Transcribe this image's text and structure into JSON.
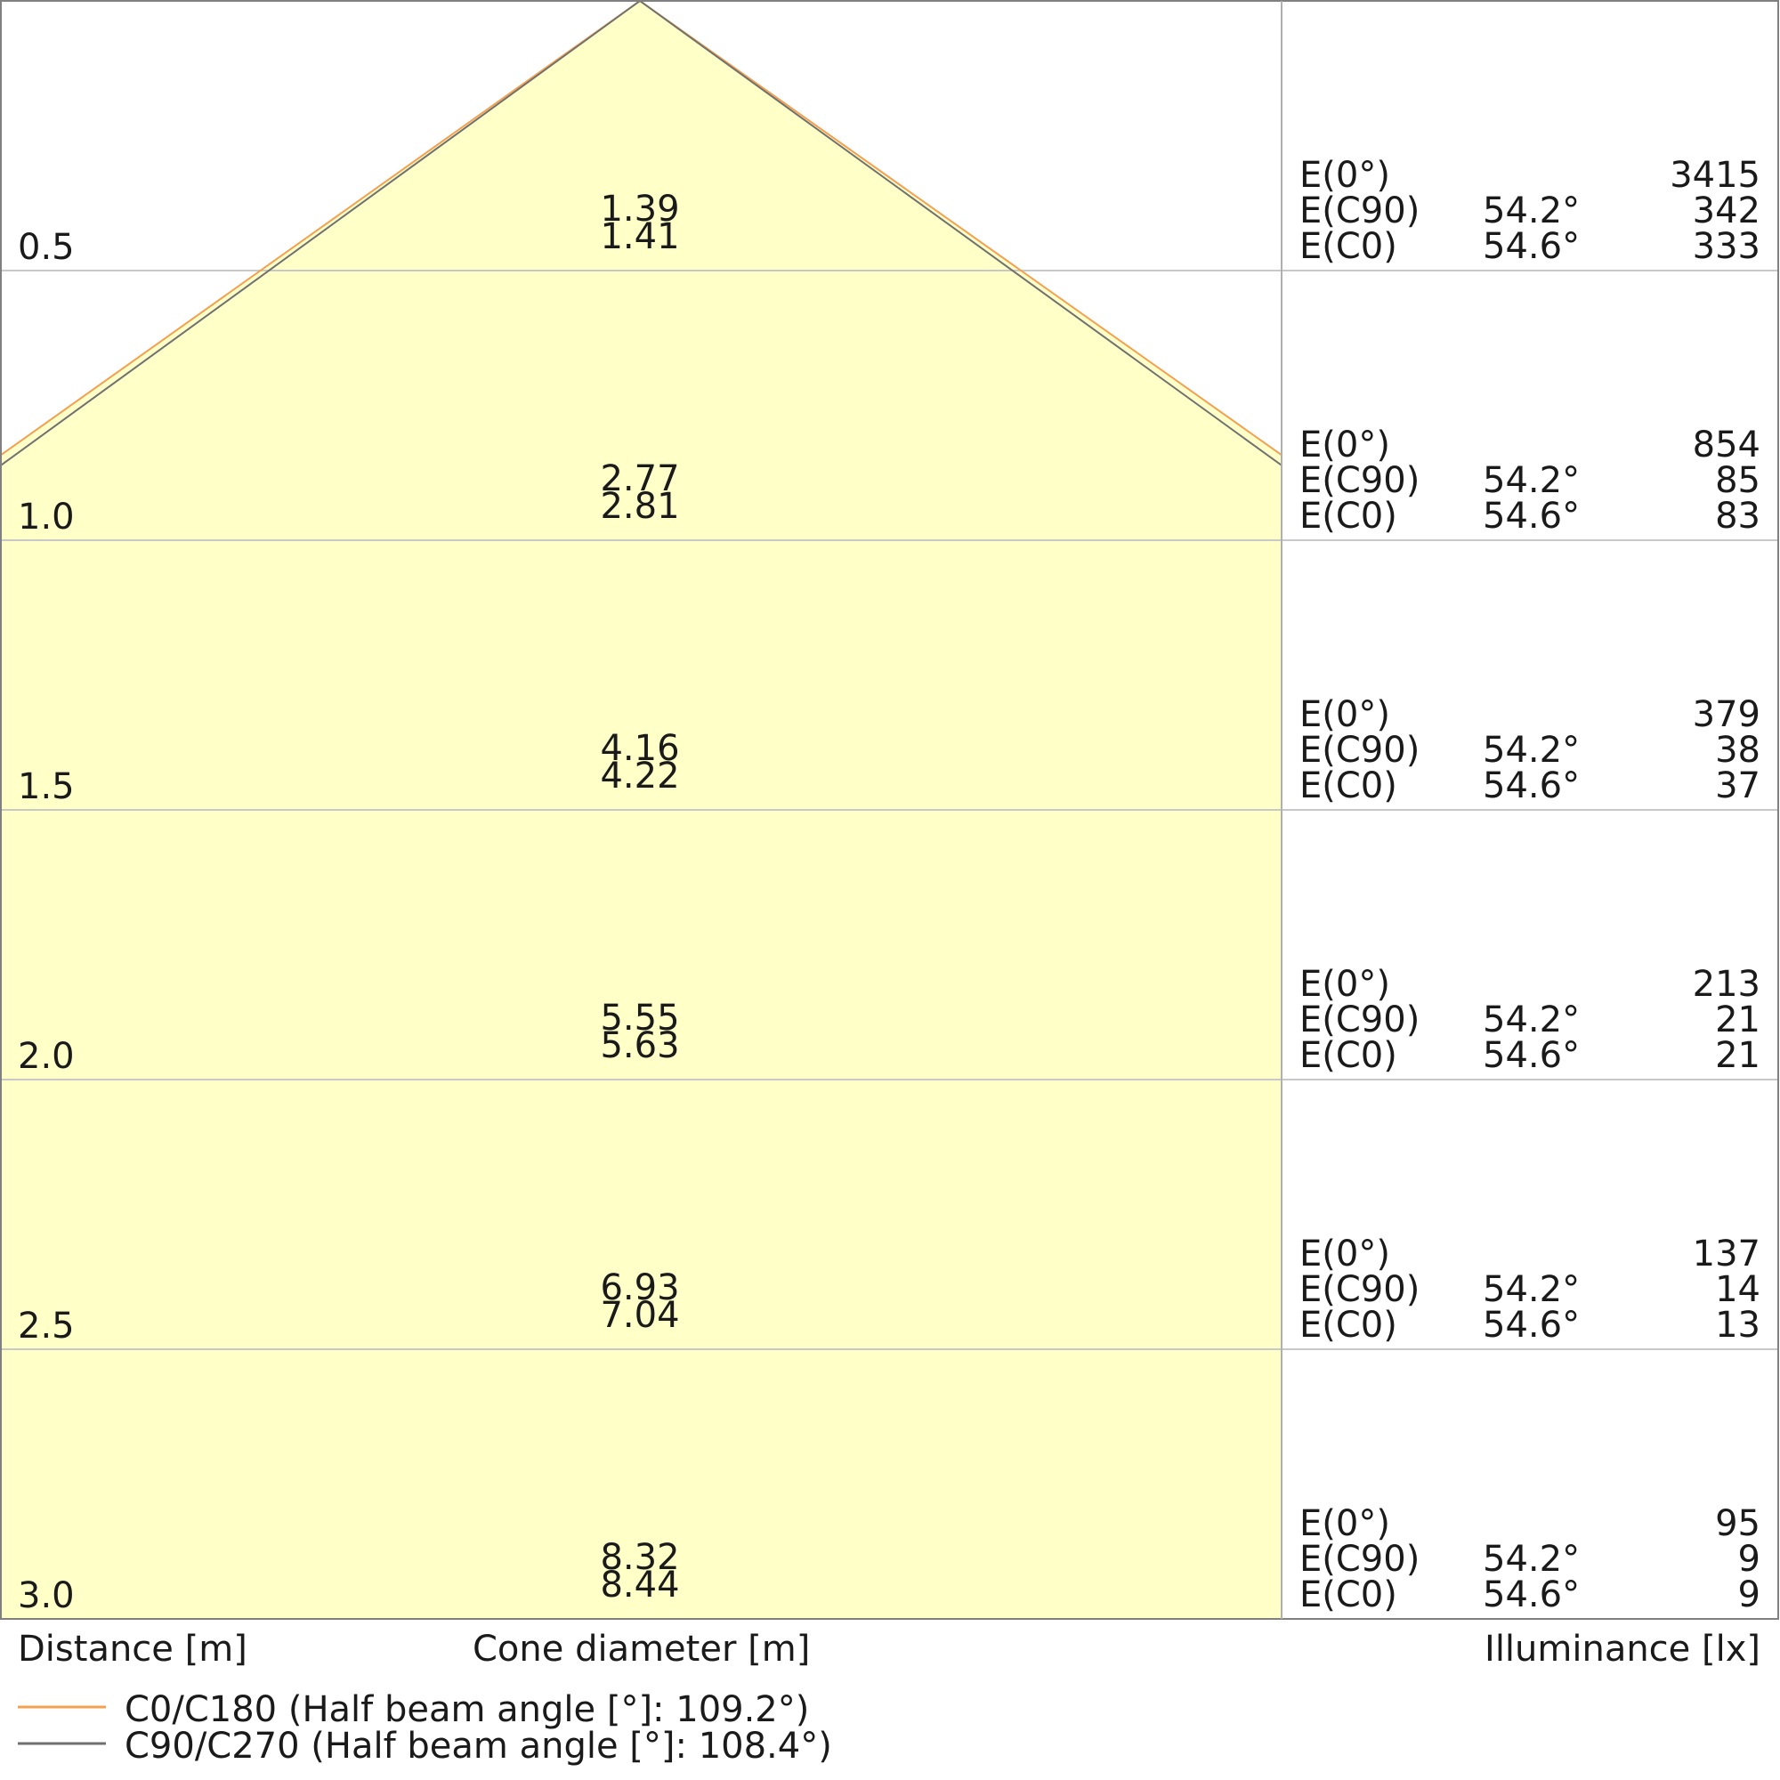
{
  "chart_data": {
    "type": "cone-diagram",
    "xlabel_left": "Distance [m]",
    "xlabel_center": "Cone diameter [m]",
    "xlabel_right": "Illuminance [lx]",
    "distance_range": [
      0,
      3.0
    ],
    "grid": true,
    "legend_placement": "bottom-left",
    "colors": {
      "fill": "#ffffc8",
      "c0": "#f5a050",
      "c90": "#707070",
      "grid": "#c8c8c8",
      "border": "#808080"
    },
    "series": [
      {
        "name": "C0/C180 (Half beam angle [°]: 109.2°)",
        "half_beam_angle": 109.2,
        "color": "#f5a050"
      },
      {
        "name": "C90/C270 (Half beam angle [°]: 108.4°)",
        "half_beam_angle": 108.4,
        "color": "#707070"
      }
    ],
    "rows": [
      {
        "distance": "0.5",
        "d1": "1.39",
        "d2": "1.41",
        "e0": "3415",
        "ec90": "342",
        "ec0": "333"
      },
      {
        "distance": "1.0",
        "d1": "2.77",
        "d2": "2.81",
        "e0": "854",
        "ec90": "85",
        "ec0": "83"
      },
      {
        "distance": "1.5",
        "d1": "4.16",
        "d2": "4.22",
        "e0": "379",
        "ec90": "38",
        "ec0": "37"
      },
      {
        "distance": "2.0",
        "d1": "5.55",
        "d2": "5.63",
        "e0": "213",
        "ec90": "21",
        "ec0": "21"
      },
      {
        "distance": "2.5",
        "d1": "6.93",
        "d2": "7.04",
        "e0": "137",
        "ec90": "14",
        "ec0": "13"
      },
      {
        "distance": "3.0",
        "d1": "8.32",
        "d2": "8.44",
        "e0": "95",
        "ec90": "9",
        "ec0": "9"
      }
    ],
    "labels": {
      "e0": "E(0°)",
      "ec90": "E(C90)",
      "ec0": "E(C0)",
      "angle_c90": "54.2°",
      "angle_c0": "54.6°"
    }
  }
}
